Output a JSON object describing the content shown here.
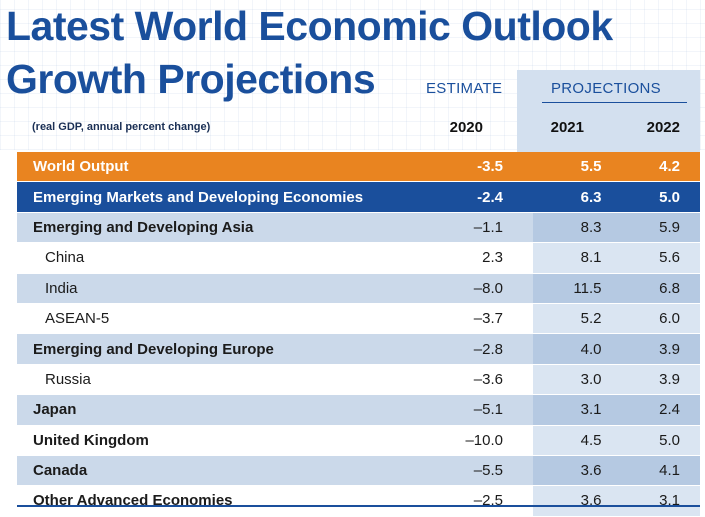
{
  "title_line1": "Latest World Economic Outlook",
  "title_line2": "Growth Projections",
  "estimate_label": "ESTIMATE",
  "projections_label": "PROJECTIONS",
  "unit_note": "(real GDP, annual percent change)",
  "colors": {
    "orange": "#e98420",
    "navy": "#1a4f9c",
    "shade": "#cbd9ea"
  },
  "chart_data": {
    "type": "table",
    "columns": [
      "2020",
      "2021",
      "2022"
    ],
    "rows": [
      {
        "label": "World Output",
        "values": [
          "-3.5",
          "5.5",
          "4.2"
        ],
        "style": "orange"
      },
      {
        "label": "Emerging Markets and Developing Economies",
        "values": [
          "-2.4",
          "6.3",
          "5.0"
        ],
        "style": "navy"
      },
      {
        "label": "Emerging and Developing Asia",
        "values": [
          "–1.1",
          "8.3",
          "5.9"
        ],
        "style": "shade-bold"
      },
      {
        "label": "China",
        "values": [
          "2.3",
          "8.1",
          "5.6"
        ],
        "style": "white-sub"
      },
      {
        "label": "India",
        "values": [
          "–8.0",
          "11.5",
          "6.8"
        ],
        "style": "shade-sub"
      },
      {
        "label": "ASEAN-5",
        "values": [
          "–3.7",
          "5.2",
          "6.0"
        ],
        "style": "white-sub"
      },
      {
        "label": "Emerging and Developing Europe",
        "values": [
          "–2.8",
          "4.0",
          "3.9"
        ],
        "style": "shade-bold"
      },
      {
        "label": "Russia",
        "values": [
          "–3.6",
          "3.0",
          "3.9"
        ],
        "style": "white-sub"
      },
      {
        "label": "Japan",
        "values": [
          "–5.1",
          "3.1",
          "2.4"
        ],
        "style": "shade-bold"
      },
      {
        "label": "United Kingdom",
        "values": [
          "–10.0",
          "4.5",
          "5.0"
        ],
        "style": "white-bold"
      },
      {
        "label": "Canada",
        "values": [
          "–5.5",
          "3.6",
          "4.1"
        ],
        "style": "shade-bold"
      },
      {
        "label": "Other Advanced Economies",
        "values": [
          "–2.5",
          "3.6",
          "3.1"
        ],
        "style": "white-bold"
      }
    ]
  }
}
